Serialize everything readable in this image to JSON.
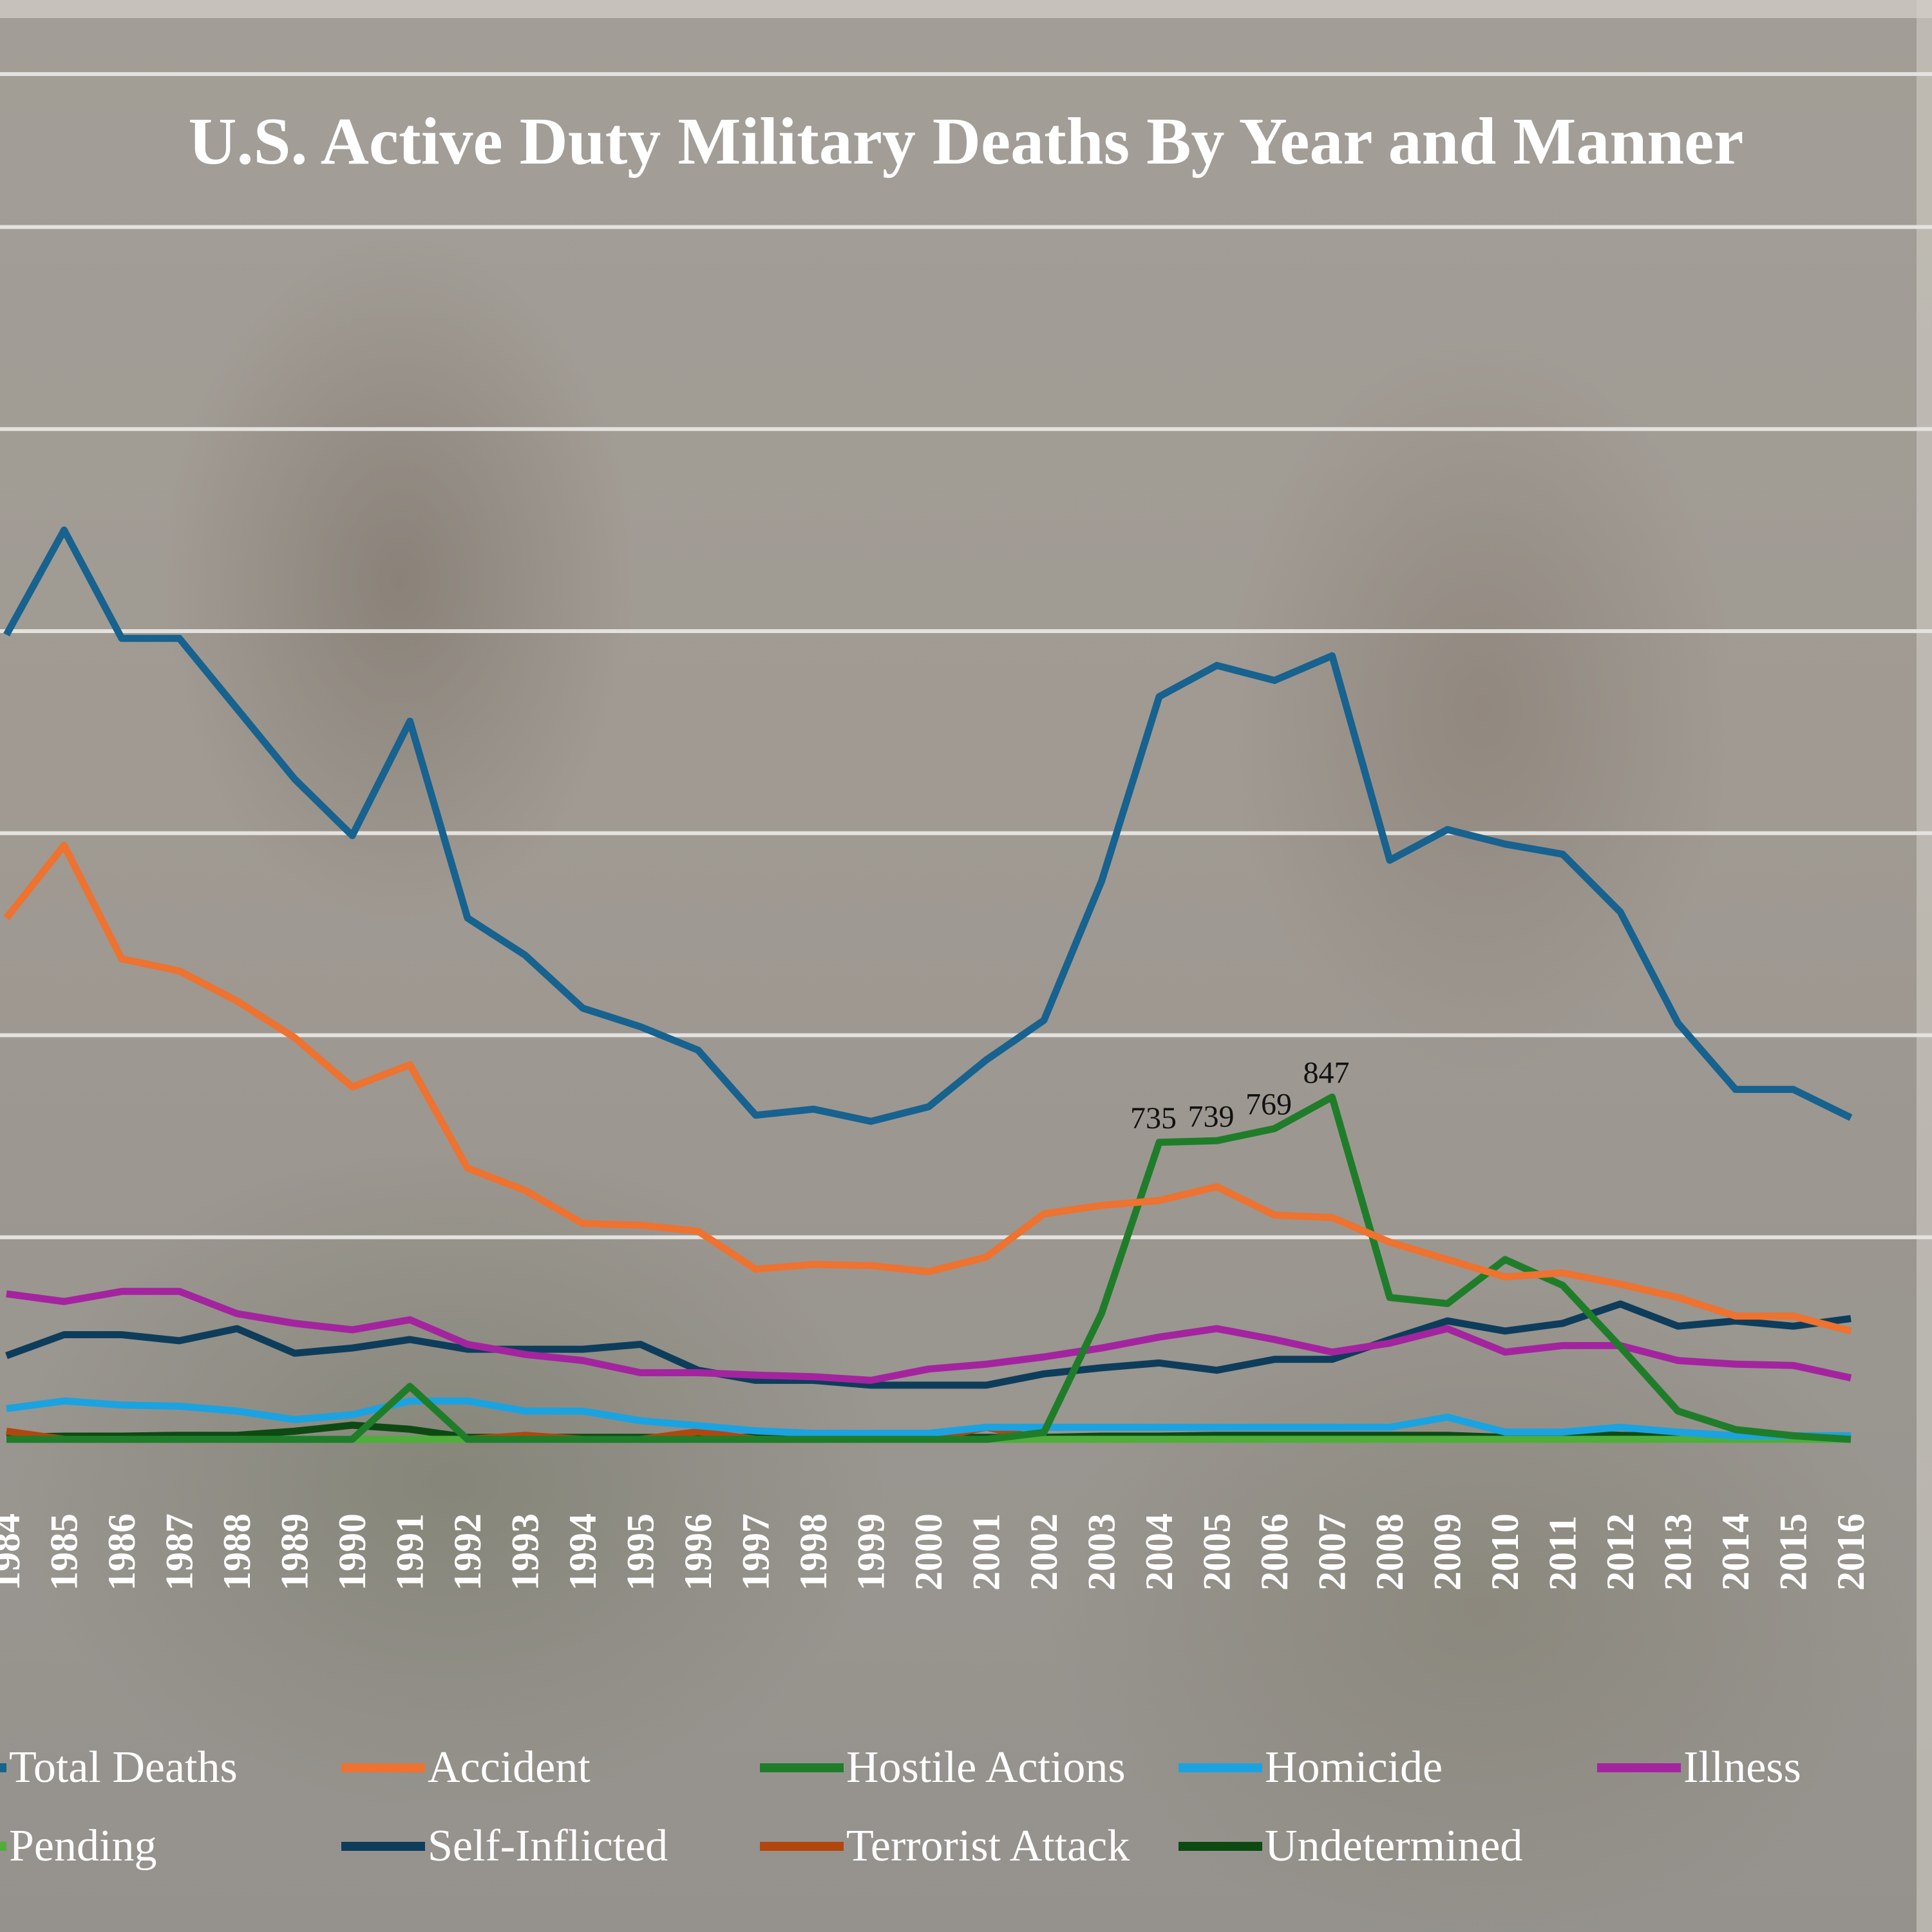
{
  "chart_data": {
    "type": "line",
    "title": "U.S. Active Duty Military Deaths By Year and Manner",
    "xlabel": "",
    "ylabel": "",
    "ylim": [
      0,
      3500
    ],
    "grid": true,
    "gridlines": [
      500,
      1000,
      1500,
      2000,
      2500,
      3000
    ],
    "legend_position": "bottom",
    "x": [
      "1984",
      "1985",
      "1986",
      "1987",
      "1988",
      "1989",
      "1990",
      "1991",
      "1992",
      "1993",
      "1994",
      "1995",
      "1996",
      "1997",
      "1998",
      "1999",
      "2000",
      "2001",
      "2002",
      "2003",
      "2004",
      "2005",
      "2006",
      "2007",
      "2008",
      "2009",
      "2010",
      "2011",
      "2012",
      "2013",
      "2014",
      "2015",
      "2016"
    ],
    "series": [
      {
        "name": "Total Deaths",
        "color": "#17628f",
        "values": [
          1991,
          2250,
          1982,
          1982,
          1808,
          1634,
          1494,
          1777,
          1290,
          1198,
          1067,
          1021,
          963,
          802,
          817,
          787,
          823,
          939,
          1037,
          1381,
          1838,
          1915,
          1878,
          1939,
          1433,
          1509,
          1473,
          1448,
          1305,
          1030,
          866,
          866,
          796
        ]
      },
      {
        "name": "Accident",
        "color": "#ee7230",
        "values": [
          1290,
          1470,
          1189,
          1159,
          1085,
          994,
          872,
          927,
          671,
          616,
          534,
          530,
          515,
          421,
          433,
          430,
          415,
          451,
          558,
          579,
          591,
          625,
          555,
          549,
          488,
          445,
          402,
          412,
          384,
          351,
          305,
          305,
          268
        ]
      },
      {
        "name": "Hostile Actions",
        "color": "#1f7d2a",
        "values": [
          0,
          0,
          0,
          0,
          0,
          0,
          0,
          131,
          0,
          0,
          0,
          0,
          0,
          0,
          0,
          0,
          0,
          0,
          17,
          312,
          735,
          739,
          769,
          847,
          351,
          336,
          445,
          381,
          229,
          70,
          24,
          9,
          0
        ],
        "data_labels": {
          "2004": "735",
          "2005": "739",
          "2006": "769",
          "2007": "847"
        }
      },
      {
        "name": "Homicide",
        "color": "#1aa3e0",
        "values": [
          76,
          95,
          85,
          82,
          70,
          49,
          61,
          95,
          95,
          70,
          70,
          46,
          34,
          21,
          15,
          15,
          15,
          30,
          30,
          30,
          30,
          30,
          30,
          30,
          30,
          55,
          18,
          18,
          30,
          18,
          9,
          9,
          9
        ]
      },
      {
        "name": "Illness",
        "color": "#a4249f",
        "values": [
          360,
          341,
          366,
          366,
          311,
          287,
          271,
          296,
          235,
          210,
          195,
          165,
          165,
          159,
          155,
          146,
          174,
          186,
          204,
          226,
          253,
          274,
          247,
          216,
          238,
          274,
          216,
          232,
          232,
          195,
          186,
          183,
          152
        ]
      },
      {
        "name": "Pending",
        "color": "#4fae3a",
        "values": [
          0,
          0,
          0,
          0,
          0,
          0,
          0,
          0,
          0,
          0,
          0,
          0,
          0,
          0,
          0,
          0,
          0,
          0,
          0,
          0,
          0,
          0,
          0,
          0,
          0,
          0,
          0,
          0,
          0,
          0,
          0,
          0,
          0
        ]
      },
      {
        "name": "Self-Inflicted",
        "color": "#0d3d5b",
        "values": [
          207,
          259,
          259,
          244,
          274,
          213,
          226,
          247,
          223,
          223,
          223,
          235,
          171,
          146,
          146,
          134,
          134,
          134,
          162,
          177,
          189,
          171,
          198,
          198,
          247,
          293,
          268,
          287,
          335,
          280,
          293,
          280,
          299
        ]
      },
      {
        "name": "Terrorist Attack",
        "color": "#b1470d",
        "values": [
          20,
          0,
          0,
          0,
          0,
          0,
          0,
          0,
          0,
          10,
          0,
          0,
          19,
          0,
          0,
          0,
          0,
          30,
          0,
          0,
          0,
          0,
          0,
          0,
          0,
          0,
          0,
          0,
          0,
          0,
          0,
          0,
          0
        ]
      },
      {
        "name": "Undetermined",
        "color": "#0c4a12",
        "values": [
          5,
          8,
          8,
          10,
          10,
          20,
          35,
          25,
          5,
          5,
          5,
          5,
          5,
          5,
          5,
          5,
          5,
          5,
          5,
          8,
          8,
          10,
          10,
          10,
          10,
          10,
          5,
          15,
          10,
          8,
          8,
          8,
          5
        ]
      }
    ]
  }
}
